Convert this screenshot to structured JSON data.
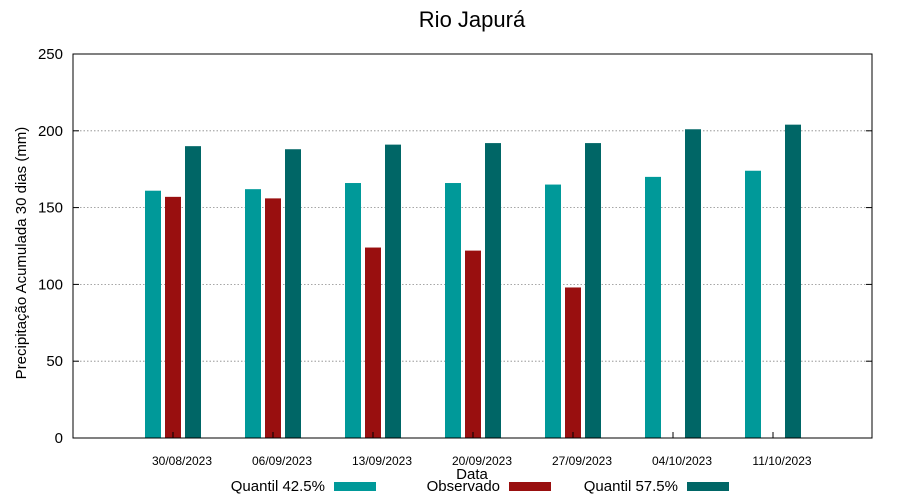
{
  "chart_data": {
    "type": "bar",
    "title": "Rio Japurá",
    "xlabel": "Data",
    "ylabel": "Precipitação Acumulada 30 dias (mm)",
    "ylim": [
      0,
      250
    ],
    "yticks": [
      0,
      50,
      100,
      150,
      200,
      250
    ],
    "grid": true,
    "legend_position": "bottom",
    "categories": [
      "30/08/2023",
      "06/09/2023",
      "13/09/2023",
      "20/09/2023",
      "27/09/2023",
      "04/10/2023",
      "11/10/2023"
    ],
    "series": [
      {
        "name": "Quantil 42.5%",
        "color": "#009999",
        "values": [
          161,
          162,
          166,
          166,
          165,
          170,
          174
        ]
      },
      {
        "name": "Observado",
        "color": "#990f0f",
        "values": [
          157,
          156,
          124,
          122,
          98,
          null,
          null
        ]
      },
      {
        "name": "Quantil 57.5%",
        "color": "#006666",
        "values": [
          190,
          188,
          191,
          192,
          192,
          201,
          204
        ]
      }
    ]
  }
}
